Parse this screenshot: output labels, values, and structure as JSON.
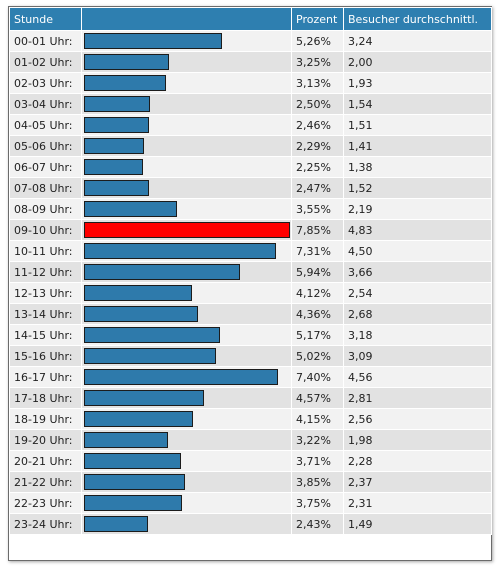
{
  "headers": {
    "hour": "Stunde",
    "bar": "",
    "percent": "Prozent",
    "avg": "Besucher durchschnittl."
  },
  "colors": {
    "header": "#2e7fb0",
    "bar": "#2e7aab",
    "bar_max": "#ff0000"
  },
  "chart_data": {
    "type": "bar",
    "categories": [
      "00-01 Uhr:",
      "01-02 Uhr:",
      "02-03 Uhr:",
      "03-04 Uhr:",
      "04-05 Uhr:",
      "05-06 Uhr:",
      "06-07 Uhr:",
      "07-08 Uhr:",
      "08-09 Uhr:",
      "09-10 Uhr:",
      "10-11 Uhr:",
      "11-12 Uhr:",
      "12-13 Uhr:",
      "13-14 Uhr:",
      "14-15 Uhr:",
      "15-16 Uhr:",
      "16-17 Uhr:",
      "17-18 Uhr:",
      "18-19 Uhr:",
      "19-20 Uhr:",
      "20-21 Uhr:",
      "21-22 Uhr:",
      "22-23 Uhr:",
      "23-24 Uhr:"
    ],
    "percent_labels": [
      "5,26%",
      "3,25%",
      "3,13%",
      "2,50%",
      "2,46%",
      "2,29%",
      "2,25%",
      "2,47%",
      "3,55%",
      "7,85%",
      "7,31%",
      "5,94%",
      "4,12%",
      "4,36%",
      "5,17%",
      "5,02%",
      "7,40%",
      "4,57%",
      "4,15%",
      "3,22%",
      "3,71%",
      "3,85%",
      "3,75%",
      "2,43%"
    ],
    "values": [
      5.26,
      3.25,
      3.13,
      2.5,
      2.46,
      2.29,
      2.25,
      2.47,
      3.55,
      7.85,
      7.31,
      5.94,
      4.12,
      4.36,
      5.17,
      5.02,
      7.4,
      4.57,
      4.15,
      3.22,
      3.71,
      3.85,
      3.75,
      2.43
    ],
    "avg_labels": [
      "3,24",
      "2,00",
      "1,93",
      "1,54",
      "1,51",
      "1,41",
      "1,38",
      "1,52",
      "2,19",
      "4,83",
      "4,50",
      "3,66",
      "2,54",
      "2,68",
      "3,18",
      "3,09",
      "4,56",
      "2,81",
      "2,56",
      "1,98",
      "2,28",
      "2,37",
      "2,31",
      "1,49"
    ],
    "max": 7.85
  }
}
